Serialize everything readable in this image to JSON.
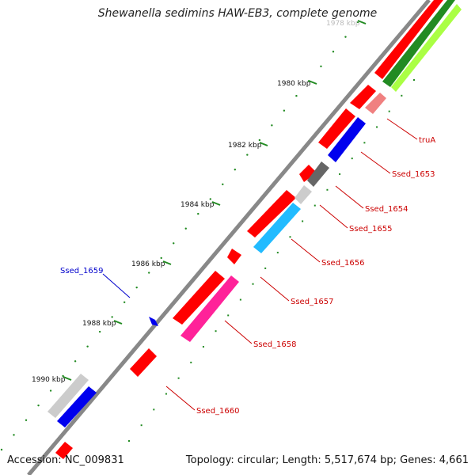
{
  "title": "Shewanella sedimins HAW-EB3, complete genome",
  "accession_label": "Accession: NC_009831",
  "topology_label": "Topology: circular; Length: 5,517,674 bp; Genes: 4,661",
  "kbp_labels": [
    "1978 kbp",
    "1980 kbp",
    "1982 kbp",
    "1984 kbp",
    "1986 kbp",
    "1988 kbp",
    "1990 kbp"
  ],
  "gene_labels": [
    {
      "text": "truA",
      "color": "#cc0000"
    },
    {
      "text": "Ssed_1653",
      "color": "#cc0000"
    },
    {
      "text": "Ssed_1654",
      "color": "#cc0000"
    },
    {
      "text": "Ssed_1655",
      "color": "#cc0000"
    },
    {
      "text": "Ssed_1656",
      "color": "#cc0000"
    },
    {
      "text": "Ssed_1657",
      "color": "#cc0000"
    },
    {
      "text": "Ssed_1658",
      "color": "#cc0000"
    },
    {
      "text": "Ssed_1659",
      "color": "#0000cc"
    },
    {
      "text": "Ssed_1660",
      "color": "#cc0000"
    }
  ],
  "colors": {
    "backbone": "#888888",
    "gene_forward": "#ff0000",
    "gene_blue": "#0000ee",
    "gene_cyan": "#22bbff",
    "gene_pink": "#ff2299",
    "gene_lightred": "#f08080",
    "gene_darkgray": "#666666",
    "gene_lightgray": "#cccccc",
    "track_green": "#228b22",
    "track_lightgreen": "#aaff44",
    "tick_green": "#228b22"
  }
}
